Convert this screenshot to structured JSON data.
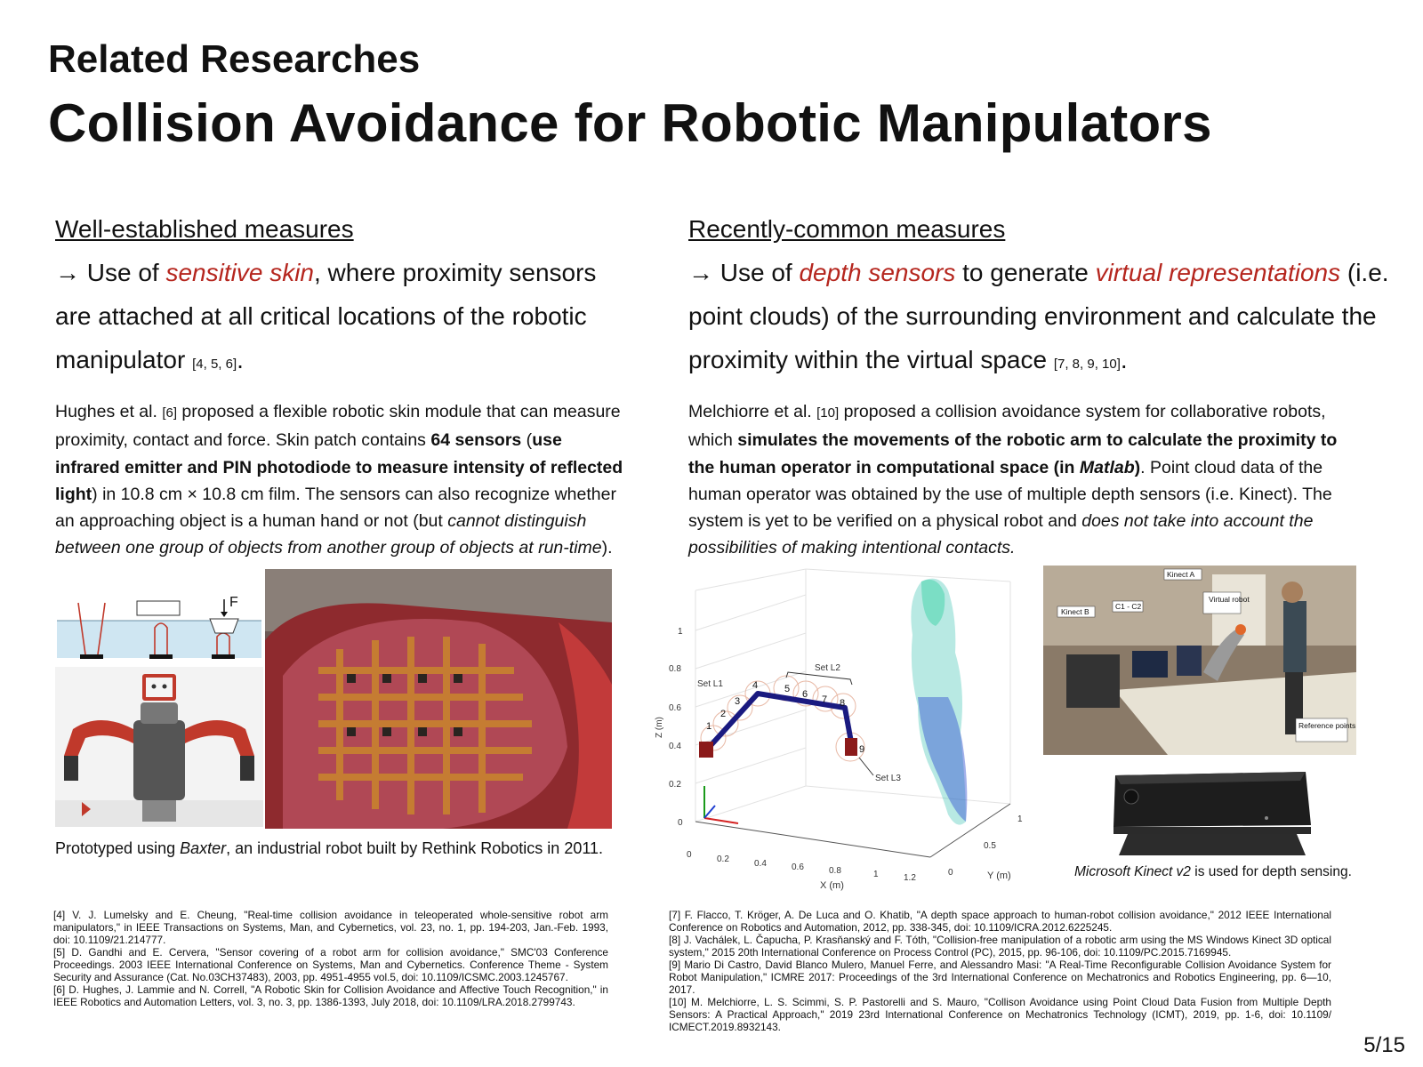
{
  "header": {
    "subtitle": "Related Researches",
    "title": "Collision Avoidance for Robotic Manipulators"
  },
  "left": {
    "heading": "Well-established measures",
    "lead": {
      "arrow_pre": "→ Use of ",
      "highlight": "sensitive skin",
      "post": ", where proximity sensors are attached at all critical locations of the robotic manipulator ",
      "cite": "[4, 5, 6]",
      "end": "."
    },
    "para": {
      "p1": "Hughes et al. ",
      "cite": "[6]",
      "p2": " proposed a flexible robotic skin module that can measure proximity, contact and force. Skin patch contains ",
      "b1": "64 sensors",
      "p3": " (",
      "b2": "use infrared emitter and PIN photodiode to measure intensity of reflected light",
      "p4": ") in 10.8 cm × 10.8 cm film. The sensors can also recognize whether an approaching object is a human hand or not (but ",
      "i1": "cannot distinguish between one group of objects from another group of objects at run-time",
      "p5": ")."
    },
    "diagram_label": "F",
    "caption": {
      "pre": "Prototyped using ",
      "italic": "Baxter",
      "post": ", an industrial robot built by Rethink Robotics in 2011."
    }
  },
  "right": {
    "heading": "Recently-common measures",
    "lead": {
      "arrow_pre": "→ Use of ",
      "highlight1": "depth sensors",
      "mid": " to generate ",
      "highlight2": "virtual representations",
      "post": " (i.e. point clouds) of the surrounding environment and calculate the proximity within the virtual space ",
      "cite": "[7, 8, 9, 10]",
      "end": "."
    },
    "para": {
      "p1": "Melchiorre et al. ",
      "cite": "[10]",
      "p2": " proposed a collision avoidance system for collaborative robots, which ",
      "b1": "simulates the movements of the robotic arm to calculate the proximity to the human operator in computational space (in ",
      "bi": "Matlab",
      "b2": ")",
      "p3": ". Point cloud data of the human operator was obtained by the use of multiple depth sensors (i.e. Kinect). The system is yet to be verified on a physical robot and ",
      "i1": "does not take into account the possibilities of making intentional contacts."
    },
    "plot": {
      "zlabel": "Z (m)",
      "xlabel": "X (m)",
      "ylabel": "Y (m)",
      "z_ticks": [
        "1",
        "0.8",
        "0.6",
        "0.4",
        "0.2",
        "0"
      ],
      "x_ticks": [
        "0",
        "0.2",
        "0.4",
        "0.6",
        "0.8",
        "1",
        "1.2"
      ],
      "y_ticks": [
        "0",
        "0.5",
        "1"
      ],
      "set_l1": "Set L1",
      "set_l2": "Set L2",
      "set_l3": "Set L3",
      "joint_numbers": [
        "1",
        "2",
        "3",
        "4",
        "5",
        "6",
        "7",
        "8",
        "9"
      ]
    },
    "photo_labels": {
      "kinect_a": "Kinect A",
      "kinect_b": "Kinect B",
      "c1c2": "C1 - C2",
      "virtual_robot": "Virtual robot",
      "reference_points": "Reference points"
    },
    "caption": {
      "italic": "Microsoft Kinect v2",
      "post": " is used for depth sensing."
    }
  },
  "references_left": [
    "[4] V. J. Lumelsky and E. Cheung, \"Real-time collision avoidance in teleoperated whole-sensitive robot arm manipulators,\" in IEEE Transactions on Systems, Man, and Cybernetics, vol. 23, no. 1, pp. 194-203, Jan.-Feb. 1993, doi: 10.1109/21.214777.",
    "[5] D. Gandhi and E. Cervera, \"Sensor covering of a robot arm for collision avoidance,\" SMC'03 Conference Proceedings. 2003 IEEE International Conference on Systems, Man and Cybernetics. Conference Theme - System Security and Assurance (Cat. No.03CH37483), 2003, pp. 4951-4955 vol.5, doi: 10.1109/ICSMC.2003.1245767.",
    "[6] D. Hughes, J. Lammie and N. Correll, \"A Robotic Skin for Collision Avoidance and Affective Touch Recognition,\" in IEEE Robotics and Automation Letters, vol. 3, no. 3, pp. 1386-1393, July 2018, doi: 10.1109/LRA.2018.2799743."
  ],
  "references_right": [
    "[7] F. Flacco, T. Kröger, A. De Luca and O. Khatib, \"A depth space approach to human-robot collision avoidance,\" 2012 IEEE International Conference on Robotics and Automation, 2012, pp. 338-345, doi: 10.1109/ICRA.2012.6225245.",
    "[8] J. Vachálek, L. Čapucha, P. Krasňanský and F. Tóth, \"Collision-free manipulation of a robotic arm using the MS Windows Kinect 3D optical system,\" 2015 20th International Conference on Process Control (PC), 2015, pp. 96-106, doi: 10.1109/PC.2015.7169945.",
    "[9] Mario Di Castro, David Blanco Mulero, Manuel Ferre, and Alessandro Masi: \"A Real-Time Reconfigurable Collision Avoidance System for Robot Manipulation,\" ICMRE 2017: Proceedings of the 3rd International Conference on Mechatronics and Robotics Engineering, pp. 6—10, 2017.",
    "[10] M. Melchiorre, L. S. Scimmi, S. P. Pastorelli and S. Mauro, \"Collison Avoidance using Point Cloud Data Fusion from Multiple Depth Sensors: A Practical Approach,\" 2019 23rd International Conference on Mechatronics Technology (ICMT), 2019, pp. 1-6, doi: 10.1109/ ICMECT.2019.8932143."
  ],
  "page_number": "5/15"
}
